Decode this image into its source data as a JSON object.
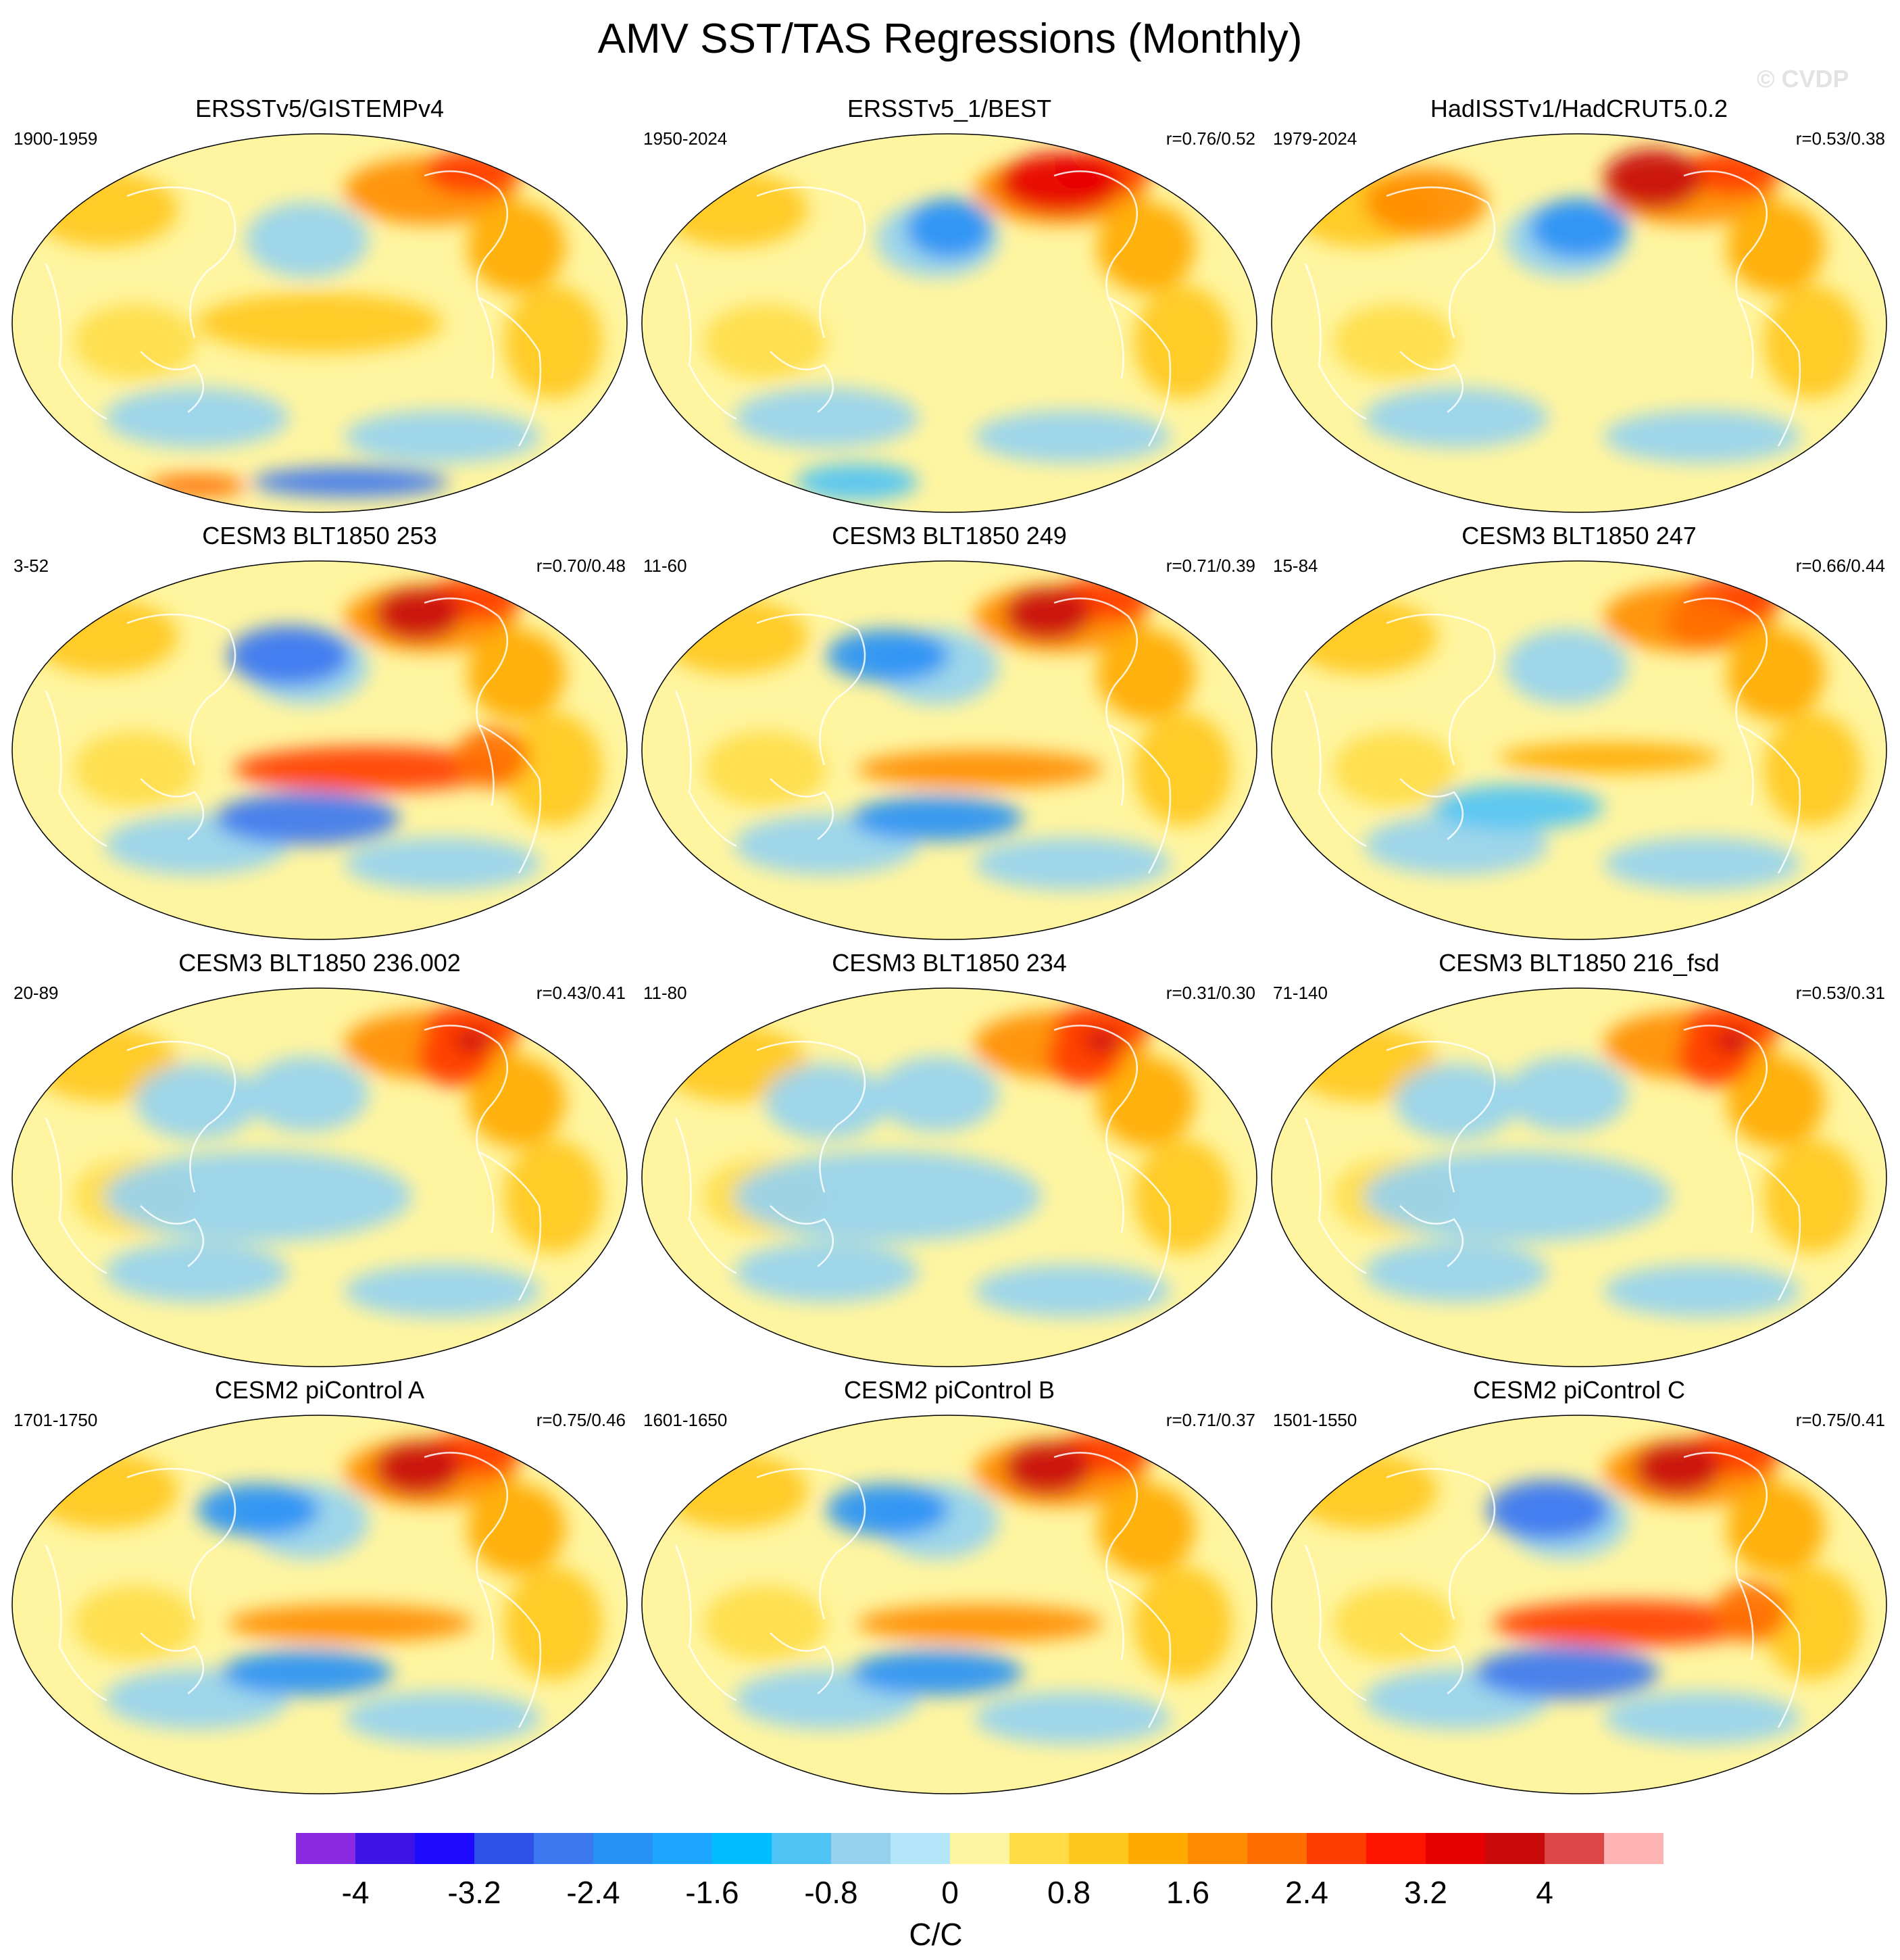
{
  "title": "AMV SST/TAS Regressions (Monthly)",
  "watermark": "© CVDP",
  "chart_data": {
    "type": "heatmap",
    "projection": "robinson-world",
    "title": "AMV SST/TAS Regressions (Monthly)",
    "panels": [
      {
        "title": "ERSSTv5/GISTEMPv4",
        "period": "1900-1959",
        "corr": "",
        "pattern": "obs-early"
      },
      {
        "title": "ERSSTv5_1/BEST",
        "period": "1950-2024",
        "corr": "r=0.76/0.52",
        "pattern": "obs-mid"
      },
      {
        "title": "HadISSTv1/HadCRUT5.0.2",
        "period": "1979-2024",
        "corr": "r=0.53/0.38",
        "pattern": "obs-late"
      },
      {
        "title": "CESM3 BLT1850 253",
        "period": "3-52",
        "corr": "r=0.70/0.48",
        "pattern": "enso-strong"
      },
      {
        "title": "CESM3 BLT1850 249",
        "period": "11-60",
        "corr": "r=0.71/0.39",
        "pattern": "enso-moderate"
      },
      {
        "title": "CESM3 BLT1850 247",
        "period": "15-84",
        "corr": "r=0.66/0.44",
        "pattern": "enso-weak"
      },
      {
        "title": "CESM3 BLT1850 236.002",
        "period": "20-89",
        "corr": "r=0.43/0.41",
        "pattern": "atlantic-only"
      },
      {
        "title": "CESM3 BLT1850 234",
        "period": "11-80",
        "corr": "r=0.31/0.30",
        "pattern": "atlantic-only"
      },
      {
        "title": "CESM3 BLT1850 216_fsd",
        "period": "71-140",
        "corr": "r=0.53/0.31",
        "pattern": "atlantic-only"
      },
      {
        "title": "CESM2 piControl A",
        "period": "1701-1750",
        "corr": "r=0.75/0.46",
        "pattern": "enso-moderate"
      },
      {
        "title": "CESM2 piControl B",
        "period": "1601-1650",
        "corr": "r=0.71/0.37",
        "pattern": "enso-moderate"
      },
      {
        "title": "CESM2 piControl C",
        "period": "1501-1550",
        "corr": "r=0.75/0.41",
        "pattern": "enso-strong"
      }
    ],
    "colorbar": {
      "label": "C/C",
      "range": [
        -4.4,
        4.4
      ],
      "step": 0.4,
      "tick_labels": [
        "-4",
        "-3.2",
        "-2.4",
        "-1.6",
        "-0.8",
        "0",
        "0.8",
        "1.6",
        "2.4",
        "3.2",
        "4"
      ],
      "colors": [
        "#8a2be2",
        "#3c14e6",
        "#1e0aff",
        "#2d50e6",
        "#3c78f0",
        "#2891f5",
        "#1ea5ff",
        "#00beff",
        "#50c3f5",
        "#96d2f0",
        "#b4e6fa",
        "#fff5a0",
        "#ffdc46",
        "#ffc81e",
        "#ffaa00",
        "#ff8c00",
        "#ff6e00",
        "#ff3c00",
        "#ff1400",
        "#e60000",
        "#c80a0a",
        "#dc4646",
        "#ffb4b4"
      ]
    }
  }
}
